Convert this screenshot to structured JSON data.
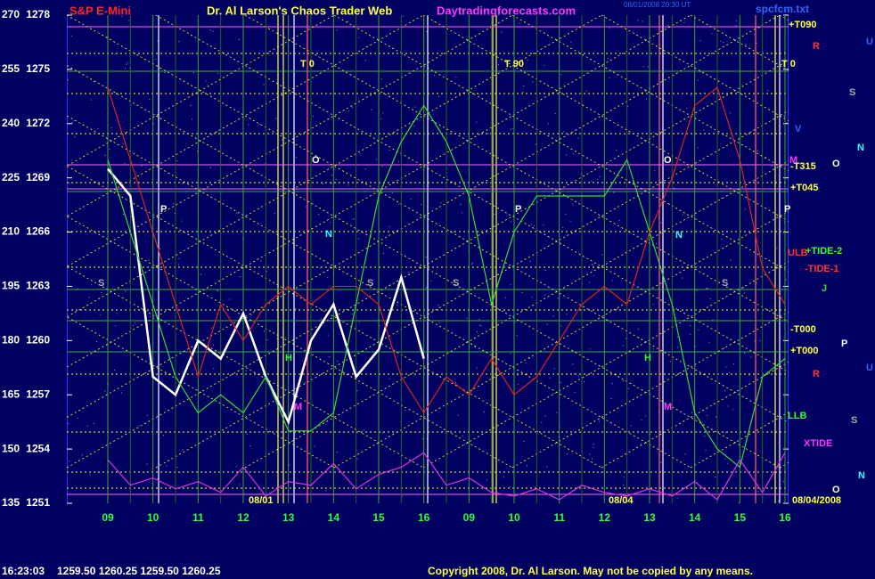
{
  "chart_data": {
    "type": "line",
    "symbol": "S&P E-Mini",
    "title": "Dr. Al Larson's Chaos Trader Web",
    "website": "Daytradingforecasts.com",
    "timestamp": "08/01/2008 20:30 UT",
    "file": "spcfcm.txt",
    "quote_time": "16:23:03",
    "quote": "1259.50 1260.25 1259.50 1260.25",
    "copyright": "Copyright 2008, Dr. Al Larson. May not be copied by any means.",
    "categories": [
      "09",
      null,
      "10",
      null,
      "11",
      null,
      "12",
      null,
      "13",
      null,
      "14",
      null,
      "15",
      null,
      "16",
      null,
      "09",
      null,
      "10",
      null,
      "11",
      null,
      "12",
      null,
      "13",
      null,
      "14",
      null,
      "15",
      null,
      "16"
    ],
    "ylim": [
      1251,
      1278
    ],
    "yticks": [
      1278,
      1275,
      1272,
      1269,
      1266,
      1263,
      1260,
      1257,
      1254,
      1251
    ],
    "y2lim": [
      135,
      270
    ],
    "y2ticks": [
      270,
      255,
      240,
      225,
      210,
      195,
      180,
      165,
      150,
      135
    ],
    "series": [
      {
        "color": "#ffffff",
        "values": [
          1269.5,
          1268,
          1258,
          1257,
          1260,
          1259,
          1261.5,
          1258,
          1255.5,
          1260,
          1262,
          1258,
          1259.5,
          1263.5,
          1259,
          null,
          null,
          null,
          null,
          null,
          null,
          null,
          null,
          null,
          null,
          null,
          null,
          null,
          null,
          null,
          null
        ]
      },
      {
        "color": "#33dd33",
        "values": [
          1270,
          1266,
          1262,
          1258,
          1256,
          1257,
          1256,
          1258,
          1255,
          1255,
          1256,
          1262,
          1268,
          1271,
          1273,
          1271,
          1268,
          1262,
          1266,
          1268,
          1268,
          1268,
          1268,
          1270,
          1266,
          1262,
          1256,
          1254,
          1253,
          1258,
          1259
        ]
      },
      {
        "color": "#dd2222",
        "values": [
          1274,
          1270,
          1266,
          1262,
          1258,
          1262,
          1260,
          1262,
          1263,
          1262,
          1263,
          1263,
          1262,
          1258,
          1256,
          1258,
          1257,
          1259,
          1257,
          1258,
          1260,
          1262,
          1263,
          1262,
          1266,
          1269,
          1273,
          1274,
          1270,
          1264,
          1262
        ]
      },
      {
        "color": "#dd33dd",
        "axis": "y2",
        "values": [
          147,
          140,
          142,
          139,
          141,
          138,
          145,
          137,
          141,
          140,
          146,
          139,
          143,
          145,
          149,
          140,
          142,
          138,
          137,
          139,
          136,
          140,
          138,
          137,
          139,
          137,
          141,
          136,
          147,
          138,
          149
        ]
      }
    ],
    "annotations": [
      {
        "text": "T 0",
        "color": "#ffff44"
      },
      {
        "text": "T 90",
        "color": "#ffff44"
      },
      {
        "text": "T 0",
        "color": "#ffff44"
      },
      {
        "text": "+T090",
        "color": "#ffff44"
      },
      {
        "text": "-T315",
        "color": "#ffff44"
      },
      {
        "text": "+T045",
        "color": "#ffff44"
      },
      {
        "text": "-T000",
        "color": "#ffff44"
      },
      {
        "text": "+T000",
        "color": "#ffff44"
      },
      {
        "text": "ULB",
        "color": "#ff3333"
      },
      {
        "text": "+TIDE-2",
        "color": "#33ff33"
      },
      {
        "text": "-TIDE-1",
        "color": "#ff3333"
      },
      {
        "text": "J",
        "color": "#33dd33"
      },
      {
        "text": "LLB",
        "color": "#33ff33"
      },
      {
        "text": "XTIDE",
        "color": "#ff33ff"
      },
      {
        "text": "08/01",
        "color": "#ffff44"
      },
      {
        "text": "08/04",
        "color": "#ffff44"
      },
      {
        "text": "08/04/2008",
        "color": "#ffff44"
      },
      {
        "text": "R",
        "color": "#ff3333"
      },
      {
        "text": "U",
        "color": "#3366ff"
      },
      {
        "text": "S",
        "color": "#aaaaaa"
      },
      {
        "text": "V",
        "color": "#3366ff"
      },
      {
        "text": "N",
        "color": "#33ffff"
      },
      {
        "text": "M",
        "color": "#ff33ff"
      },
      {
        "text": "O",
        "color": "#ffffff"
      },
      {
        "text": "P",
        "color": "#ffffff"
      },
      {
        "text": "R",
        "color": "#ff3333"
      },
      {
        "text": "U",
        "color": "#3366ff"
      },
      {
        "text": "S",
        "color": "#aaaaaa"
      },
      {
        "text": "N",
        "color": "#33ffff"
      },
      {
        "text": "O",
        "color": "#ffffff"
      },
      {
        "text": "O",
        "color": "#ffffff"
      },
      {
        "text": "P",
        "color": "#ffffff"
      },
      {
        "text": "N",
        "color": "#33ffff"
      },
      {
        "text": "S",
        "color": "#aaaaaa"
      },
      {
        "text": "S",
        "color": "#aaaaaa"
      },
      {
        "text": "S",
        "color": "#aaaaaa"
      },
      {
        "text": "P",
        "color": "#ffffff"
      },
      {
        "text": "O",
        "color": "#ffffff"
      },
      {
        "text": "N",
        "color": "#33ffff"
      },
      {
        "text": "S",
        "color": "#aaaaaa"
      },
      {
        "text": "P",
        "color": "#ffffff"
      },
      {
        "text": "M",
        "color": "#ff33ff"
      },
      {
        "text": "M",
        "color": "#ff33ff"
      },
      {
        "text": "H",
        "color": "#33ff33"
      },
      {
        "text": "H",
        "color": "#33ff33"
      }
    ]
  }
}
